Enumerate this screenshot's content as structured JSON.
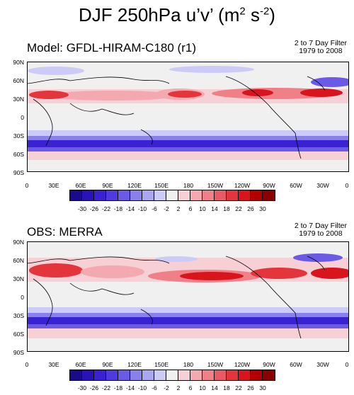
{
  "figure": {
    "title": "DJF 250hPa u’v’ (m",
    "title_sup1": "2",
    "title_mid": " s",
    "title_sup2": "-2",
    "title_end": ")"
  },
  "panels": [
    {
      "label": "Model: GFDL-HIRAM-C180 (r1)",
      "filter_line1": "2 to 7 Day Filter",
      "filter_line2": "1979 to 2008"
    },
    {
      "label": "OBS: MERRA",
      "filter_line1": "2 to 7 Day Filter",
      "filter_line2": "1979 to 2008"
    }
  ],
  "lat_labels": [
    "90N",
    "60N",
    "30N",
    "0",
    "30S",
    "60S",
    "90S"
  ],
  "lon_labels": [
    "0",
    "30E",
    "60E",
    "90E",
    "120E",
    "150E",
    "180",
    "150W",
    "120W",
    "90W",
    "60W",
    "30W",
    "0"
  ],
  "colorbar": {
    "labels": [
      "-30",
      "-26",
      "-22",
      "-18",
      "-14",
      "-10",
      "-6",
      "-2",
      "2",
      "6",
      "10",
      "14",
      "18",
      "22",
      "26",
      "30"
    ],
    "colors": [
      "#1a0a8c",
      "#2a12b8",
      "#3a22d4",
      "#4e3ae0",
      "#6a5ae6",
      "#8a80ec",
      "#aaa6f0",
      "#cccaf6",
      "#f0f0f0",
      "#f6d0d4",
      "#f4a8b0",
      "#f08088",
      "#ea5a62",
      "#e4343c",
      "#d8141c",
      "#b20000",
      "#8a0000"
    ]
  }
}
